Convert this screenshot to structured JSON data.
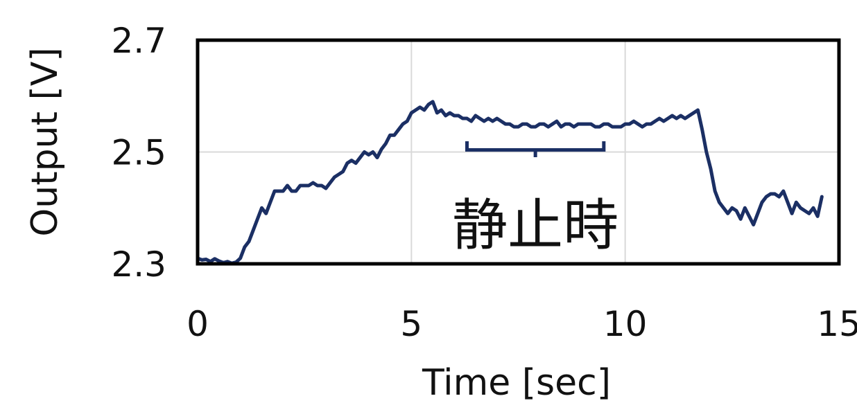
{
  "chart_data": {
    "type": "line",
    "xlabel": "Time [sec]",
    "ylabel": "Output [V]",
    "xlim": [
      0,
      15
    ],
    "ylim": [
      2.3,
      2.7
    ],
    "xticks": [
      0,
      5,
      10,
      15
    ],
    "yticks": [
      2.3,
      2.5,
      2.7
    ],
    "xtick_labels": [
      "0",
      "5",
      "10",
      "15"
    ],
    "ytick_labels": [
      "2.3",
      "2.5",
      "2.7"
    ],
    "grid": true,
    "line_color": "#1b2f64",
    "grid_color": "#d9d9d9",
    "frame_color": "#000000",
    "series": [
      {
        "x": [
          0.0,
          0.1,
          0.2,
          0.3,
          0.4,
          0.5,
          0.6,
          0.7,
          0.8,
          0.9,
          1.0,
          1.1,
          1.2,
          1.3,
          1.4,
          1.5,
          1.6,
          1.7,
          1.8,
          1.9,
          2.0,
          2.1,
          2.2,
          2.3,
          2.4,
          2.5,
          2.6,
          2.7,
          2.8,
          2.9,
          3.0,
          3.1,
          3.2,
          3.3,
          3.4,
          3.5,
          3.6,
          3.7,
          3.8,
          3.9,
          4.0,
          4.1,
          4.2,
          4.3,
          4.4,
          4.5,
          4.6,
          4.7,
          4.8,
          4.9,
          5.0,
          5.1,
          5.2,
          5.3,
          5.4,
          5.5,
          5.6,
          5.7,
          5.8,
          5.9,
          6.0,
          6.1,
          6.2,
          6.3,
          6.4,
          6.5,
          6.6,
          6.7,
          6.8,
          6.9,
          7.0,
          7.1,
          7.2,
          7.3,
          7.4,
          7.5,
          7.6,
          7.7,
          7.8,
          7.9,
          8.0,
          8.1,
          8.2,
          8.3,
          8.4,
          8.5,
          8.6,
          8.7,
          8.8,
          8.9,
          9.0,
          9.1,
          9.2,
          9.3,
          9.4,
          9.5,
          9.6,
          9.7,
          9.8,
          9.9,
          10.0,
          10.1,
          10.2,
          10.3,
          10.4,
          10.5,
          10.6,
          10.7,
          10.8,
          10.9,
          11.0,
          11.1,
          11.2,
          11.3,
          11.4,
          11.5,
          11.6,
          11.7,
          11.8,
          11.9,
          12.0,
          12.1,
          12.2,
          12.3,
          12.4,
          12.5,
          12.6,
          12.7,
          12.8,
          12.9,
          13.0,
          13.1,
          13.2,
          13.3,
          13.4,
          13.5,
          13.6,
          13.7,
          13.8,
          13.9,
          14.0,
          14.1,
          14.2,
          14.3,
          14.4,
          14.5,
          14.6
        ],
        "y": [
          2.31,
          2.307,
          2.308,
          2.304,
          2.309,
          2.305,
          2.302,
          2.304,
          2.301,
          2.303,
          2.31,
          2.33,
          2.34,
          2.36,
          2.38,
          2.4,
          2.39,
          2.41,
          2.43,
          2.43,
          2.43,
          2.44,
          2.43,
          2.43,
          2.44,
          2.44,
          2.44,
          2.445,
          2.44,
          2.44,
          2.435,
          2.445,
          2.455,
          2.46,
          2.465,
          2.48,
          2.485,
          2.48,
          2.49,
          2.5,
          2.495,
          2.5,
          2.49,
          2.505,
          2.515,
          2.53,
          2.53,
          2.54,
          2.55,
          2.555,
          2.57,
          2.575,
          2.58,
          2.575,
          2.585,
          2.59,
          2.57,
          2.575,
          2.565,
          2.57,
          2.565,
          2.565,
          2.56,
          2.56,
          2.555,
          2.565,
          2.56,
          2.555,
          2.56,
          2.555,
          2.56,
          2.555,
          2.55,
          2.55,
          2.545,
          2.545,
          2.55,
          2.55,
          2.545,
          2.545,
          2.55,
          2.55,
          2.545,
          2.55,
          2.555,
          2.545,
          2.55,
          2.55,
          2.545,
          2.55,
          2.55,
          2.55,
          2.55,
          2.545,
          2.545,
          2.55,
          2.55,
          2.545,
          2.545,
          2.545,
          2.55,
          2.55,
          2.555,
          2.55,
          2.545,
          2.55,
          2.55,
          2.555,
          2.56,
          2.555,
          2.56,
          2.565,
          2.56,
          2.565,
          2.56,
          2.565,
          2.57,
          2.575,
          2.54,
          2.5,
          2.47,
          2.43,
          2.41,
          2.4,
          2.39,
          2.4,
          2.395,
          2.38,
          2.4,
          2.385,
          2.37,
          2.39,
          2.41,
          2.42,
          2.425,
          2.425,
          2.42,
          2.43,
          2.41,
          2.39,
          2.41,
          2.4,
          2.395,
          2.39,
          2.4,
          2.385,
          2.42
        ]
      }
    ],
    "annotation": {
      "label": "静止時",
      "x_range": [
        6.3,
        9.5
      ],
      "y": 2.5
    }
  }
}
